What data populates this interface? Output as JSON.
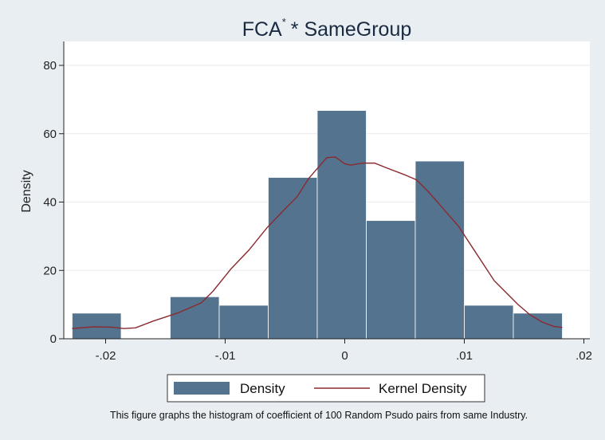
{
  "chart_data": {
    "type": "bar",
    "title": {
      "prefix": "FCA",
      "superscript": "*",
      "suffix": "* SameGroup"
    },
    "xlabel": "",
    "ylabel": "Density",
    "xlim": [
      -0.0235,
      0.0205
    ],
    "ylim": [
      0,
      80
    ],
    "xticks": [
      {
        "value": -0.02,
        "label": "-.02"
      },
      {
        "value": -0.01,
        "label": "-.01"
      },
      {
        "value": 0,
        "label": "0"
      },
      {
        "value": 0.01,
        "label": ".01"
      },
      {
        "value": 0.02,
        "label": ".02"
      }
    ],
    "yticks": [
      {
        "value": 0,
        "label": "0"
      },
      {
        "value": 20,
        "label": "20"
      },
      {
        "value": 40,
        "label": "40"
      },
      {
        "value": 60,
        "label": "60"
      },
      {
        "value": 80,
        "label": "80"
      }
    ],
    "grid": true,
    "legend_position": "bottom",
    "bar_color": "#53738f",
    "line_color": "#8b2a2f",
    "series": [
      {
        "name": "Density",
        "kind": "histogram",
        "bins": [
          {
            "x0": -0.0228,
            "x1": -0.0187,
            "value": 7.5
          },
          {
            "x0": -0.0187,
            "x1": -0.0146,
            "value": 0
          },
          {
            "x0": -0.0146,
            "x1": -0.0105,
            "value": 12.3
          },
          {
            "x0": -0.0105,
            "x1": -0.0064,
            "value": 9.8
          },
          {
            "x0": -0.0064,
            "x1": -0.0023,
            "value": 47.2
          },
          {
            "x0": -0.0023,
            "x1": 0.0018,
            "value": 66.8
          },
          {
            "x0": 0.0018,
            "x1": 0.0059,
            "value": 34.6
          },
          {
            "x0": 0.0059,
            "x1": 0.01,
            "value": 52.0
          },
          {
            "x0": 0.01,
            "x1": 0.0141,
            "value": 9.8
          },
          {
            "x0": 0.0141,
            "x1": 0.0182,
            "value": 7.5
          }
        ]
      },
      {
        "name": "Kernel Density",
        "kind": "line",
        "points": [
          [
            -0.0228,
            3.0
          ],
          [
            -0.021,
            3.5
          ],
          [
            -0.0195,
            3.4
          ],
          [
            -0.0185,
            3.0
          ],
          [
            -0.0175,
            3.2
          ],
          [
            -0.016,
            5.2
          ],
          [
            -0.014,
            7.5
          ],
          [
            -0.012,
            10.5
          ],
          [
            -0.011,
            14.0
          ],
          [
            -0.0095,
            20.5
          ],
          [
            -0.008,
            26.0
          ],
          [
            -0.0065,
            32.5
          ],
          [
            -0.005,
            38.0
          ],
          [
            -0.004,
            41.5
          ],
          [
            -0.003,
            47.0
          ],
          [
            -0.002,
            51.0
          ],
          [
            -0.0015,
            53.0
          ],
          [
            -0.0008,
            53.2
          ],
          [
            0.0,
            51.2
          ],
          [
            0.0005,
            50.8
          ],
          [
            0.0015,
            51.4
          ],
          [
            0.0025,
            51.4
          ],
          [
            0.0035,
            50.0
          ],
          [
            0.005,
            48.0
          ],
          [
            0.006,
            46.5
          ],
          [
            0.007,
            43.0
          ],
          [
            0.008,
            39.0
          ],
          [
            0.0095,
            33.0
          ],
          [
            0.011,
            25.0
          ],
          [
            0.0125,
            17.0
          ],
          [
            0.0135,
            13.5
          ],
          [
            0.0145,
            10.0
          ],
          [
            0.0155,
            7.0
          ],
          [
            0.0165,
            4.9
          ],
          [
            0.0175,
            3.6
          ],
          [
            0.0182,
            3.3
          ]
        ]
      }
    ],
    "legend": {
      "entries": [
        "Density",
        "Kernel Density"
      ]
    },
    "note": "This figure graphs the histogram of coefficient of 100 Random Psudo pairs from same Industry."
  }
}
